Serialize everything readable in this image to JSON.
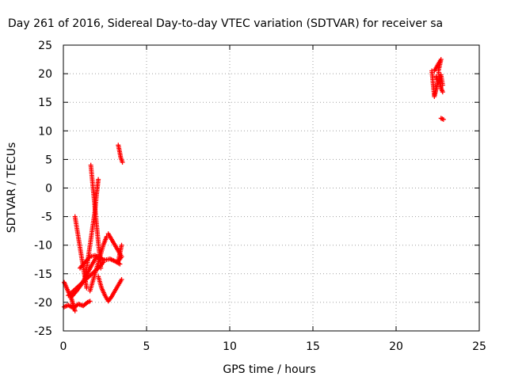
{
  "chart_data": {
    "type": "scatter",
    "title": "Day 261 of 2016, Sidereal Day-to-day VTEC variation (SDTVAR) for receiver sa",
    "xlabel": "GPS time / hours",
    "ylabel": "SDTVAR / TECUs",
    "xlim": [
      0,
      25
    ],
    "ylim": [
      -25,
      25
    ],
    "x_ticks": [
      "0",
      "5",
      "10",
      "15",
      "20",
      "25"
    ],
    "y_ticks": [
      "25",
      "20",
      "15",
      "10",
      "5",
      "0",
      "-5",
      "-10",
      "-15",
      "-20",
      "-25"
    ],
    "grid": true,
    "marker": "plus",
    "colors": {
      "series": "#ff0000"
    },
    "series": [
      {
        "name": "SDTVAR",
        "tracks": [
          [
            [
              0.05,
              -16.5
            ],
            [
              0.2,
              -17.5
            ],
            [
              0.35,
              -18.5
            ],
            [
              0.5,
              -19.5
            ],
            [
              0.6,
              -20.5
            ],
            [
              0.7,
              -21.5
            ]
          ],
          [
            [
              0.05,
              -20.8
            ],
            [
              0.3,
              -20.5
            ],
            [
              0.6,
              -21.0
            ],
            [
              0.9,
              -20.3
            ],
            [
              1.2,
              -20.6
            ],
            [
              1.45,
              -20.0
            ],
            [
              1.6,
              -19.8
            ]
          ],
          [
            [
              0.3,
              -18.8
            ],
            [
              0.6,
              -18.0
            ],
            [
              0.9,
              -17.2
            ],
            [
              1.2,
              -16.4
            ],
            [
              1.5,
              -15.6
            ],
            [
              1.8,
              -14.8
            ],
            [
              2.1,
              -14.0
            ],
            [
              2.4,
              -13.0
            ]
          ],
          [
            [
              0.7,
              -5.0
            ],
            [
              0.8,
              -6.8
            ],
            [
              0.9,
              -8.6
            ],
            [
              1.0,
              -10.4
            ],
            [
              1.1,
              -12.2
            ],
            [
              1.2,
              -14.0
            ],
            [
              1.3,
              -15.8
            ],
            [
              1.4,
              -17.5
            ]
          ],
          [
            [
              1.3,
              -16.0
            ],
            [
              1.45,
              -13.0
            ],
            [
              1.6,
              -10.0
            ],
            [
              1.75,
              -7.0
            ],
            [
              1.9,
              -4.0
            ],
            [
              2.0,
              -1.0
            ],
            [
              2.1,
              1.5
            ]
          ],
          [
            [
              1.65,
              4.0
            ],
            [
              1.75,
              1.0
            ],
            [
              1.85,
              -2.0
            ],
            [
              1.95,
              -5.0
            ],
            [
              2.05,
              -8.0
            ],
            [
              2.15,
              -11.0
            ],
            [
              2.25,
              -14.0
            ]
          ],
          [
            [
              0.5,
              -19.0
            ],
            [
              0.8,
              -18.0
            ],
            [
              1.1,
              -16.8
            ],
            [
              1.4,
              -15.2
            ],
            [
              1.7,
              -13.5
            ],
            [
              2.0,
              -12.0
            ]
          ],
          [
            [
              1.6,
              -18.0
            ],
            [
              1.8,
              -16.0
            ],
            [
              2.0,
              -14.0
            ],
            [
              2.2,
              -12.0
            ],
            [
              2.4,
              -10.0
            ],
            [
              2.6,
              -8.5
            ]
          ],
          [
            [
              1.0,
              -14.0
            ],
            [
              1.3,
              -13.0
            ],
            [
              1.6,
              -12.0
            ],
            [
              1.9,
              -11.8
            ],
            [
              2.2,
              -12.3
            ],
            [
              2.5,
              -12.6
            ],
            [
              2.8,
              -12.4
            ],
            [
              3.1,
              -12.8
            ],
            [
              3.4,
              -13.3
            ]
          ],
          [
            [
              2.1,
              -15.5
            ],
            [
              2.3,
              -17.5
            ],
            [
              2.5,
              -18.8
            ],
            [
              2.7,
              -19.8
            ],
            [
              2.9,
              -19.0
            ],
            [
              3.1,
              -18.0
            ],
            [
              3.3,
              -17.0
            ],
            [
              3.5,
              -16.0
            ]
          ],
          [
            [
              2.7,
              -8.0
            ],
            [
              2.9,
              -9.0
            ],
            [
              3.1,
              -10.0
            ],
            [
              3.3,
              -11.0
            ],
            [
              3.5,
              -12.0
            ],
            [
              3.3,
              -12.8
            ],
            [
              3.5,
              -10.0
            ]
          ],
          [
            [
              3.3,
              7.5
            ],
            [
              3.38,
              6.4
            ],
            [
              3.45,
              5.3
            ],
            [
              3.55,
              4.5
            ]
          ],
          [
            [
              22.15,
              20.5
            ],
            [
              22.2,
              19.0
            ],
            [
              22.25,
              17.5
            ],
            [
              22.3,
              16.0
            ],
            [
              22.4,
              17.2
            ],
            [
              22.5,
              18.5
            ]
          ],
          [
            [
              22.3,
              20.5
            ],
            [
              22.5,
              21.5
            ],
            [
              22.7,
              22.5
            ],
            [
              22.55,
              20.5
            ],
            [
              22.6,
              19.0
            ],
            [
              22.7,
              17.5
            ],
            [
              22.8,
              16.8
            ]
          ],
          [
            [
              22.4,
              19.5
            ],
            [
              22.55,
              18.5
            ],
            [
              22.7,
              19.8
            ],
            [
              22.8,
              18.0
            ]
          ],
          [
            [
              22.7,
              12.2
            ],
            [
              22.85,
              12.0
            ]
          ]
        ]
      }
    ]
  }
}
